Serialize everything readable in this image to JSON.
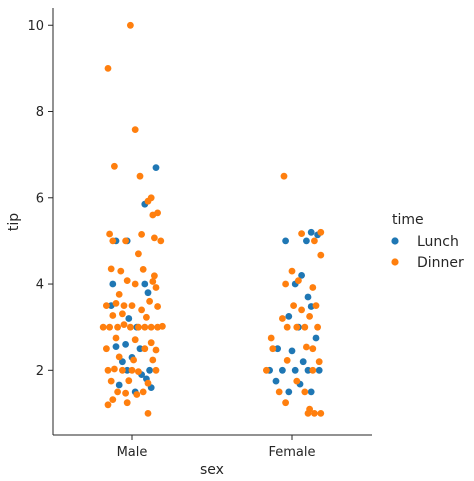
{
  "chart_data": {
    "type": "scatter",
    "subtype": "strip",
    "title": "",
    "xlabel": "sex",
    "ylabel": "tip",
    "categories": [
      "Male",
      "Female"
    ],
    "ylim": [
      0.5,
      10.4
    ],
    "yticks": [
      2,
      4,
      6,
      8,
      10
    ],
    "grid": false,
    "legend": {
      "title": "time",
      "placement": "center-right"
    },
    "series": [
      {
        "name": "Lunch",
        "color": "#1f77b4",
        "points": [
          {
            "category": "Male",
            "offset": -0.1,
            "y": 5.0
          },
          {
            "category": "Male",
            "offset": -0.03,
            "y": 5.0
          },
          {
            "category": "Male",
            "offset": 0.15,
            "y": 6.7
          },
          {
            "category": "Male",
            "offset": 0.08,
            "y": 5.85
          },
          {
            "category": "Male",
            "offset": -0.12,
            "y": 4.0
          },
          {
            "category": "Male",
            "offset": 0.08,
            "y": 4.0
          },
          {
            "category": "Male",
            "offset": 0.1,
            "y": 3.8
          },
          {
            "category": "Male",
            "offset": -0.13,
            "y": 3.5
          },
          {
            "category": "Male",
            "offset": -0.02,
            "y": 3.2
          },
          {
            "category": "Male",
            "offset": 0.03,
            "y": 3.0
          },
          {
            "category": "Male",
            "offset": -0.1,
            "y": 2.55
          },
          {
            "category": "Male",
            "offset": -0.04,
            "y": 2.6
          },
          {
            "category": "Male",
            "offset": 0.05,
            "y": 2.5
          },
          {
            "category": "Male",
            "offset": -0.06,
            "y": 2.2
          },
          {
            "category": "Male",
            "offset": 0.0,
            "y": 2.3
          },
          {
            "category": "Male",
            "offset": 0.11,
            "y": 2.0
          },
          {
            "category": "Male",
            "offset": -0.03,
            "y": 2.0
          },
          {
            "category": "Male",
            "offset": 0.06,
            "y": 1.9
          },
          {
            "category": "Male",
            "offset": -0.08,
            "y": 1.66
          },
          {
            "category": "Male",
            "offset": 0.09,
            "y": 1.8
          },
          {
            "category": "Male",
            "offset": 0.12,
            "y": 1.6
          },
          {
            "category": "Male",
            "offset": 0.02,
            "y": 1.5
          },
          {
            "category": "Female",
            "offset": 0.12,
            "y": 5.2
          },
          {
            "category": "Female",
            "offset": 0.16,
            "y": 5.14
          },
          {
            "category": "Female",
            "offset": -0.04,
            "y": 5.0
          },
          {
            "category": "Female",
            "offset": 0.09,
            "y": 5.0
          },
          {
            "category": "Female",
            "offset": 0.06,
            "y": 4.2
          },
          {
            "category": "Female",
            "offset": 0.02,
            "y": 4.0
          },
          {
            "category": "Female",
            "offset": 0.1,
            "y": 3.7
          },
          {
            "category": "Female",
            "offset": -0.02,
            "y": 3.25
          },
          {
            "category": "Female",
            "offset": 0.12,
            "y": 3.48
          },
          {
            "category": "Female",
            "offset": 0.04,
            "y": 3.0
          },
          {
            "category": "Female",
            "offset": 0.15,
            "y": 2.75
          },
          {
            "category": "Female",
            "offset": -0.09,
            "y": 2.5
          },
          {
            "category": "Female",
            "offset": 0.0,
            "y": 2.45
          },
          {
            "category": "Female",
            "offset": 0.07,
            "y": 2.2
          },
          {
            "category": "Female",
            "offset": -0.14,
            "y": 2.0
          },
          {
            "category": "Female",
            "offset": -0.06,
            "y": 2.0
          },
          {
            "category": "Female",
            "offset": 0.02,
            "y": 2.0
          },
          {
            "category": "Female",
            "offset": 0.1,
            "y": 2.0
          },
          {
            "category": "Female",
            "offset": 0.17,
            "y": 2.0
          },
          {
            "category": "Female",
            "offset": -0.1,
            "y": 1.75
          },
          {
            "category": "Female",
            "offset": 0.05,
            "y": 1.68
          },
          {
            "category": "Female",
            "offset": -0.02,
            "y": 1.5
          },
          {
            "category": "Female",
            "offset": 0.12,
            "y": 1.5
          }
        ]
      },
      {
        "name": "Dinner",
        "color": "#ff7f0e",
        "points": [
          {
            "category": "Male",
            "offset": -0.01,
            "y": 10.0
          },
          {
            "category": "Male",
            "offset": -0.15,
            "y": 9.0
          },
          {
            "category": "Male",
            "offset": 0.02,
            "y": 7.58
          },
          {
            "category": "Male",
            "offset": -0.11,
            "y": 6.73
          },
          {
            "category": "Male",
            "offset": 0.05,
            "y": 6.5
          },
          {
            "category": "Male",
            "offset": 0.12,
            "y": 6.0
          },
          {
            "category": "Male",
            "offset": 0.1,
            "y": 5.92
          },
          {
            "category": "Male",
            "offset": 0.13,
            "y": 5.6
          },
          {
            "category": "Male",
            "offset": 0.16,
            "y": 5.65
          },
          {
            "category": "Male",
            "offset": -0.14,
            "y": 5.16
          },
          {
            "category": "Male",
            "offset": 0.06,
            "y": 5.15
          },
          {
            "category": "Male",
            "offset": -0.12,
            "y": 5.0
          },
          {
            "category": "Male",
            "offset": -0.04,
            "y": 5.0
          },
          {
            "category": "Male",
            "offset": 0.14,
            "y": 5.07
          },
          {
            "category": "Male",
            "offset": 0.18,
            "y": 5.0
          },
          {
            "category": "Male",
            "offset": 0.04,
            "y": 4.7
          },
          {
            "category": "Male",
            "offset": -0.13,
            "y": 4.35
          },
          {
            "category": "Male",
            "offset": -0.07,
            "y": 4.3
          },
          {
            "category": "Male",
            "offset": 0.07,
            "y": 4.34
          },
          {
            "category": "Male",
            "offset": 0.14,
            "y": 4.19
          },
          {
            "category": "Male",
            "offset": -0.03,
            "y": 4.08
          },
          {
            "category": "Male",
            "offset": 0.02,
            "y": 4.0
          },
          {
            "category": "Male",
            "offset": 0.13,
            "y": 4.06
          },
          {
            "category": "Male",
            "offset": -0.08,
            "y": 3.76
          },
          {
            "category": "Male",
            "offset": 0.15,
            "y": 3.92
          },
          {
            "category": "Male",
            "offset": -0.16,
            "y": 3.5
          },
          {
            "category": "Male",
            "offset": -0.1,
            "y": 3.55
          },
          {
            "category": "Male",
            "offset": -0.05,
            "y": 3.5
          },
          {
            "category": "Male",
            "offset": 0.0,
            "y": 3.5
          },
          {
            "category": "Male",
            "offset": 0.06,
            "y": 3.4
          },
          {
            "category": "Male",
            "offset": 0.11,
            "y": 3.6
          },
          {
            "category": "Male",
            "offset": 0.16,
            "y": 3.48
          },
          {
            "category": "Male",
            "offset": -0.12,
            "y": 3.27
          },
          {
            "category": "Male",
            "offset": -0.06,
            "y": 3.31
          },
          {
            "category": "Male",
            "offset": 0.09,
            "y": 3.23
          },
          {
            "category": "Male",
            "offset": -0.18,
            "y": 3.0
          },
          {
            "category": "Male",
            "offset": -0.14,
            "y": 3.0
          },
          {
            "category": "Male",
            "offset": -0.09,
            "y": 3.0
          },
          {
            "category": "Male",
            "offset": -0.05,
            "y": 3.06
          },
          {
            "category": "Male",
            "offset": -0.01,
            "y": 3.0
          },
          {
            "category": "Male",
            "offset": 0.04,
            "y": 3.0
          },
          {
            "category": "Male",
            "offset": 0.08,
            "y": 3.0
          },
          {
            "category": "Male",
            "offset": 0.12,
            "y": 3.0
          },
          {
            "category": "Male",
            "offset": 0.16,
            "y": 3.0
          },
          {
            "category": "Male",
            "offset": 0.19,
            "y": 3.02
          },
          {
            "category": "Male",
            "offset": -0.1,
            "y": 2.75
          },
          {
            "category": "Male",
            "offset": 0.02,
            "y": 2.71
          },
          {
            "category": "Male",
            "offset": 0.12,
            "y": 2.64
          },
          {
            "category": "Male",
            "offset": -0.16,
            "y": 2.5
          },
          {
            "category": "Male",
            "offset": 0.08,
            "y": 2.5
          },
          {
            "category": "Male",
            "offset": 0.15,
            "y": 2.47
          },
          {
            "category": "Male",
            "offset": -0.08,
            "y": 2.31
          },
          {
            "category": "Male",
            "offset": 0.01,
            "y": 2.24
          },
          {
            "category": "Male",
            "offset": 0.13,
            "y": 2.24
          },
          {
            "category": "Male",
            "offset": -0.15,
            "y": 2.0
          },
          {
            "category": "Male",
            "offset": -0.11,
            "y": 2.03
          },
          {
            "category": "Male",
            "offset": -0.06,
            "y": 2.0
          },
          {
            "category": "Male",
            "offset": 0.0,
            "y": 2.0
          },
          {
            "category": "Male",
            "offset": 0.04,
            "y": 1.97
          },
          {
            "category": "Male",
            "offset": 0.15,
            "y": 2.0
          },
          {
            "category": "Male",
            "offset": -0.13,
            "y": 1.75
          },
          {
            "category": "Male",
            "offset": -0.02,
            "y": 1.76
          },
          {
            "category": "Male",
            "offset": 0.1,
            "y": 1.7
          },
          {
            "category": "Male",
            "offset": -0.09,
            "y": 1.5
          },
          {
            "category": "Male",
            "offset": -0.04,
            "y": 1.47
          },
          {
            "category": "Male",
            "offset": 0.03,
            "y": 1.44
          },
          {
            "category": "Male",
            "offset": 0.07,
            "y": 1.5
          },
          {
            "category": "Male",
            "offset": -0.12,
            "y": 1.32
          },
          {
            "category": "Male",
            "offset": -0.03,
            "y": 1.25
          },
          {
            "category": "Male",
            "offset": -0.15,
            "y": 1.2
          },
          {
            "category": "Male",
            "offset": 0.1,
            "y": 1.0
          },
          {
            "category": "Female",
            "offset": -0.05,
            "y": 6.5
          },
          {
            "category": "Female",
            "offset": 0.18,
            "y": 5.2
          },
          {
            "category": "Female",
            "offset": 0.06,
            "y": 5.17
          },
          {
            "category": "Female",
            "offset": 0.14,
            "y": 5.0
          },
          {
            "category": "Female",
            "offset": 0.18,
            "y": 4.67
          },
          {
            "category": "Female",
            "offset": 0.0,
            "y": 4.3
          },
          {
            "category": "Female",
            "offset": 0.04,
            "y": 4.08
          },
          {
            "category": "Female",
            "offset": -0.04,
            "y": 4.0
          },
          {
            "category": "Female",
            "offset": 0.13,
            "y": 3.92
          },
          {
            "category": "Female",
            "offset": 0.01,
            "y": 3.5
          },
          {
            "category": "Female",
            "offset": 0.06,
            "y": 3.4
          },
          {
            "category": "Female",
            "offset": 0.15,
            "y": 3.5
          },
          {
            "category": "Female",
            "offset": 0.11,
            "y": 3.25
          },
          {
            "category": "Female",
            "offset": -0.06,
            "y": 3.2
          },
          {
            "category": "Female",
            "offset": -0.03,
            "y": 3.0
          },
          {
            "category": "Female",
            "offset": 0.03,
            "y": 3.0
          },
          {
            "category": "Female",
            "offset": 0.08,
            "y": 3.0
          },
          {
            "category": "Female",
            "offset": 0.16,
            "y": 3.0
          },
          {
            "category": "Female",
            "offset": -0.13,
            "y": 2.75
          },
          {
            "category": "Female",
            "offset": 0.09,
            "y": 2.54
          },
          {
            "category": "Female",
            "offset": -0.12,
            "y": 2.5
          },
          {
            "category": "Female",
            "offset": 0.13,
            "y": 2.5
          },
          {
            "category": "Female",
            "offset": -0.03,
            "y": 2.23
          },
          {
            "category": "Female",
            "offset": 0.17,
            "y": 2.2
          },
          {
            "category": "Female",
            "offset": -0.16,
            "y": 2.0
          },
          {
            "category": "Female",
            "offset": 0.13,
            "y": 2.0
          },
          {
            "category": "Female",
            "offset": 0.03,
            "y": 1.75
          },
          {
            "category": "Female",
            "offset": -0.08,
            "y": 1.5
          },
          {
            "category": "Female",
            "offset": 0.08,
            "y": 1.5
          },
          {
            "category": "Female",
            "offset": -0.04,
            "y": 1.25
          },
          {
            "category": "Female",
            "offset": 0.1,
            "y": 1.0
          },
          {
            "category": "Female",
            "offset": 0.14,
            "y": 1.0
          },
          {
            "category": "Female",
            "offset": 0.18,
            "y": 1.0
          },
          {
            "category": "Female",
            "offset": 0.11,
            "y": 1.1
          }
        ]
      }
    ]
  }
}
